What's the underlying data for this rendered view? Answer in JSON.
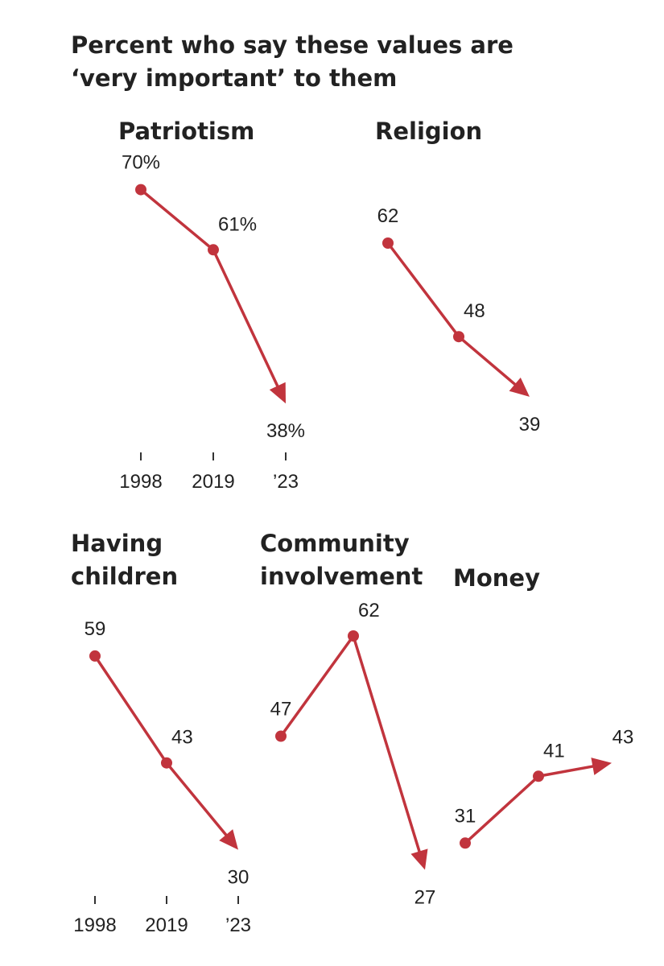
{
  "title": "Percent who say these values are ‘very important’ to them",
  "chart_data": [
    {
      "type": "line",
      "title": "Patriotism",
      "categories": [
        "1998",
        "2019",
        "’23"
      ],
      "values": [
        70,
        61,
        38
      ],
      "value_labels": [
        "70%",
        "61%",
        "38%"
      ],
      "color": "#c1343d",
      "ylim": [
        25,
        72
      ]
    },
    {
      "type": "line",
      "title": "Religion",
      "categories": [
        null,
        null,
        null
      ],
      "values": [
        62,
        48,
        39
      ],
      "color": "#c1343d",
      "ylim": [
        25,
        72
      ]
    },
    {
      "type": "line",
      "title": "Having children",
      "categories": [
        "1998",
        "2019",
        "’23"
      ],
      "values": [
        59,
        43,
        30
      ],
      "color": "#c1343d",
      "ylim": [
        25,
        72
      ]
    },
    {
      "type": "line",
      "title": "Community involvement",
      "categories": [
        null,
        null,
        null
      ],
      "values": [
        47,
        62,
        27
      ],
      "color": "#c1343d",
      "ylim": [
        25,
        72
      ]
    },
    {
      "type": "line",
      "title": "Money",
      "categories": [
        null,
        null,
        null
      ],
      "values": [
        31,
        41,
        43
      ],
      "color": "#c1343d",
      "ylim": [
        25,
        72
      ]
    }
  ]
}
